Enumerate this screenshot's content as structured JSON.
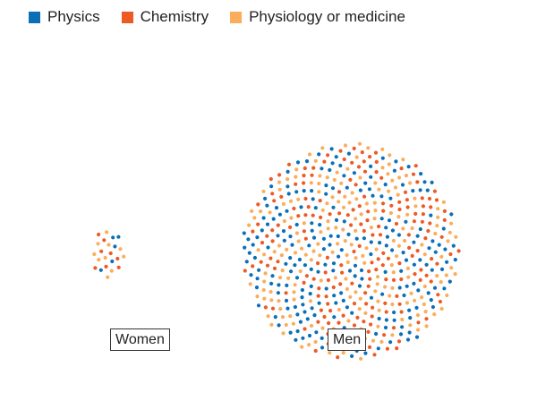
{
  "chart_data": {
    "type": "scatter",
    "legend": [
      {
        "label": "Physics",
        "color": "#0b6fb8"
      },
      {
        "label": "Chemistry",
        "color": "#ee5a24"
      },
      {
        "label": "Physiology or medicine",
        "color": "#fbad5c"
      }
    ],
    "groups": [
      {
        "label": "Women",
        "total": 23,
        "counts": {
          "Physics": 5,
          "Chemistry": 8,
          "Physiology or medicine": 10
        }
      },
      {
        "label": "Men",
        "total": 615,
        "counts": {
          "Physics": 221,
          "Chemistry": 186,
          "Physiology or medicine": 208
        }
      }
    ],
    "legend_position": "top-left",
    "grid": false
  }
}
